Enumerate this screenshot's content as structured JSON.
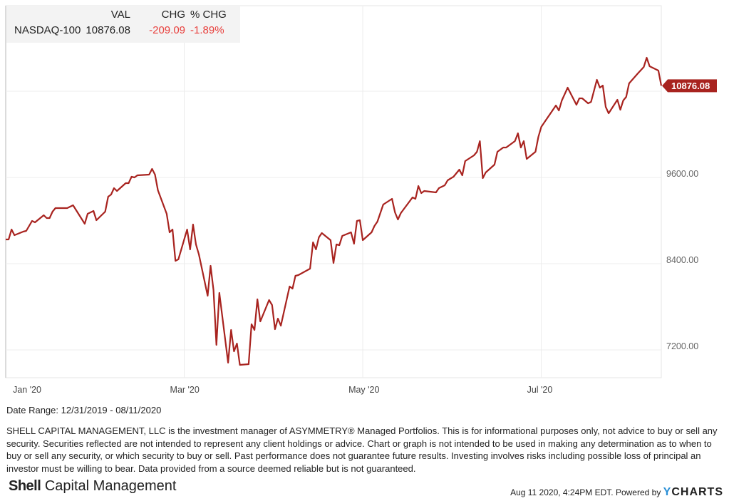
{
  "legend": {
    "headers": [
      "VAL",
      "CHG",
      "% CHG"
    ],
    "name": "NASDAQ-100",
    "val": "10876.08",
    "chg": "-209.09",
    "pct_chg": "-1.89%"
  },
  "chart_data": {
    "type": "line",
    "title": "",
    "series_name": "NASDAQ-100",
    "x_unit": "calendar days since 12/31/2019",
    "x_ticks": [
      {
        "day": 1,
        "label": "Jan '20"
      },
      {
        "day": 61,
        "label": "Mar '20"
      },
      {
        "day": 122,
        "label": "May '20"
      },
      {
        "day": 183,
        "label": "Jul '20"
      }
    ],
    "y_ticks": [
      {
        "value": 7200,
        "label": "7200.00"
      },
      {
        "value": 8400,
        "label": "8400.00"
      },
      {
        "value": 9600,
        "label": "9600.00"
      }
    ],
    "y_gridlines": [
      7200,
      8400,
      9600,
      10800
    ],
    "ylim": [
      6800,
      11950
    ],
    "xlim": [
      0,
      224
    ],
    "last_value_label": "10876.08",
    "line_color": "#a8231f",
    "x_day": [
      0,
      1,
      2,
      3,
      6,
      7,
      9,
      10,
      13,
      14,
      15,
      16,
      17,
      21,
      23,
      27,
      28,
      30,
      31,
      34,
      35,
      36,
      37,
      38,
      41,
      42,
      43,
      44,
      45,
      49,
      50,
      51,
      52,
      55,
      56,
      57,
      58,
      59,
      62,
      63,
      64,
      65,
      66,
      69,
      70,
      71,
      72,
      73,
      76,
      77,
      78,
      79,
      80,
      83,
      84,
      85,
      86,
      87,
      90,
      91,
      92,
      93,
      94,
      97,
      98,
      99,
      100,
      104,
      105,
      106,
      107,
      108,
      111,
      112,
      113,
      114,
      115,
      118,
      119,
      120,
      121,
      122,
      125,
      126,
      127,
      129,
      132,
      133,
      134,
      135,
      139,
      140,
      141,
      142,
      143,
      147,
      148,
      150,
      151,
      153,
      155,
      156,
      157,
      160,
      161,
      162,
      163,
      164,
      167,
      168,
      170,
      171,
      174,
      175,
      176,
      177,
      178,
      181,
      182,
      183,
      188,
      189,
      190,
      192,
      195,
      196,
      197,
      199,
      200,
      202,
      203,
      204,
      205,
      206,
      209,
      210,
      211,
      212,
      213,
      216,
      218,
      219,
      220,
      223,
      224
    ],
    "values": [
      8737,
      8737,
      8876,
      8797,
      8846,
      8856,
      8995,
      8975,
      9074,
      9035,
      9035,
      9124,
      9174,
      9174,
      9213,
      8955,
      9094,
      9134,
      9005,
      9124,
      9332,
      9362,
      9451,
      9412,
      9521,
      9521,
      9610,
      9600,
      9630,
      9640,
      9719,
      9640,
      9421,
      9094,
      8836,
      8876,
      8440,
      8460,
      8876,
      8598,
      8945,
      8668,
      8529,
      7954,
      8370,
      8033,
      7270,
      7993,
      7022,
      7478,
      7180,
      7289,
      6992,
      7002,
      7557,
      7478,
      7904,
      7597,
      7894,
      7825,
      7488,
      7636,
      7537,
      8083,
      8053,
      8231,
      8241,
      8331,
      8698,
      8598,
      8767,
      8826,
      8727,
      8410,
      8668,
      8658,
      8787,
      8836,
      8678,
      8995,
      9005,
      8727,
      8836,
      8926,
      8985,
      9223,
      9302,
      9114,
      9015,
      9104,
      9322,
      9302,
      9481,
      9382,
      9412,
      9392,
      9451,
      9491,
      9560,
      9610,
      9709,
      9630,
      9828,
      9907,
      9957,
      10106,
      9590,
      9669,
      9779,
      9957,
      10017,
      10017,
      10106,
      10215,
      10017,
      10106,
      9858,
      9957,
      10165,
      10304,
      10602,
      10532,
      10671,
      10850,
      10612,
      10701,
      10701,
      10631,
      10651,
      10959,
      10850,
      10879,
      10582,
      10493,
      10681,
      10542,
      10671,
      10721,
      10909,
      11048,
      11137,
      11266,
      11147,
      11088,
      10876.08
    ]
  },
  "footer": {
    "date_range": "Date Range: 12/31/2019 - 08/11/2020",
    "disclaimer": "SHELL CAPITAL MANAGEMENT, LLC is the investment manager of ASYMMETRY® Managed Portfolios. This is for informational purposes only, not advice to buy or sell any security. Securities reflected are not intended to represent any client holdings or advice. Chart or graph is not intended to be used in making any determination as to when to buy or sell any security, or which security to buy or sell. Past performance does not guarantee future results. Investing involves risks including possible loss of principal an investor must be willing to bear. Data provided from a source deemed reliable but is not guaranteed.",
    "logo_bold": "Shell",
    "logo_rest": " Capital Management",
    "timestamp": "Aug 11 2020, 4:24PM EDT. Powered by ",
    "ycharts_y": "Y",
    "ycharts_rest": "CHARTS"
  }
}
